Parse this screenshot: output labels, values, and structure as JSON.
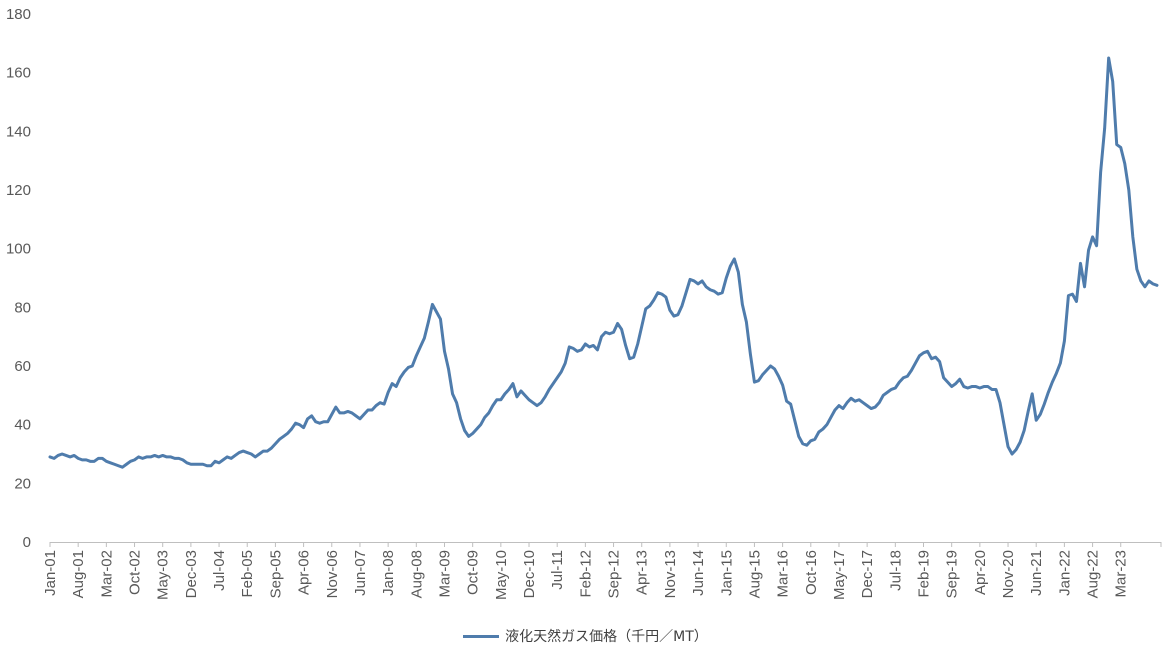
{
  "chart_data": {
    "type": "line",
    "title": "",
    "xlabel": "",
    "ylabel": "",
    "ylim": [
      0,
      180
    ],
    "yticks": [
      0,
      20,
      40,
      60,
      80,
      100,
      120,
      140,
      160,
      180
    ],
    "grid": false,
    "legend_position": "bottom",
    "x_start": "Jan-01",
    "x_tick_labels": [
      "Jan-01",
      "Aug-01",
      "Mar-02",
      "Oct-02",
      "May-03",
      "Dec-03",
      "Jul-04",
      "Feb-05",
      "Sep-05",
      "Apr-06",
      "Nov-06",
      "Jun-07",
      "Jan-08",
      "Aug-08",
      "Mar-09",
      "Oct-09",
      "May-10",
      "Dec-10",
      "Jul-11",
      "Feb-12",
      "Sep-12",
      "Apr-13",
      "Nov-13",
      "Jun-14",
      "Jan-15",
      "Aug-15",
      "Mar-16",
      "Oct-16",
      "May-17",
      "Dec-17",
      "Jul-18",
      "Feb-19",
      "Sep-19",
      "Apr-20",
      "Nov-20",
      "Jun-21",
      "Jan-22",
      "Aug-22",
      "Mar-23"
    ],
    "series": [
      {
        "name": "液化天然ガス価格（千円／MT）",
        "color": "#4f7cac",
        "values": [
          29,
          28.5,
          29.5,
          30,
          29.5,
          29,
          29.5,
          28.5,
          28,
          28,
          27.5,
          27.5,
          28.5,
          28.5,
          27.5,
          27,
          26.5,
          26,
          25.5,
          26.5,
          27.5,
          28,
          29,
          28.5,
          29,
          29,
          29.5,
          29,
          29.5,
          29,
          29,
          28.5,
          28.5,
          28,
          27,
          26.5,
          26.5,
          26.5,
          26.5,
          26,
          26,
          27.5,
          27,
          28,
          29,
          28.5,
          29.5,
          30.5,
          31,
          30.5,
          30,
          29,
          30,
          31,
          31,
          32,
          33.5,
          35,
          36,
          37,
          38.5,
          40.5,
          40,
          39,
          42,
          43,
          41,
          40.5,
          41,
          41,
          43.5,
          46,
          44,
          44,
          44.5,
          44,
          43,
          42,
          43.5,
          45,
          45,
          46.5,
          47.5,
          47,
          51,
          54,
          53,
          56,
          58,
          59.5,
          60,
          63.5,
          66.5,
          69.5,
          75,
          81,
          78.5,
          76,
          65,
          59,
          50.5,
          47.5,
          42,
          38,
          36,
          37,
          38.5,
          40,
          42.5,
          44,
          46.5,
          48.5,
          48.5,
          50.5,
          52,
          54,
          49.5,
          51.5,
          50,
          48.5,
          47.5,
          46.5,
          47.5,
          49.5,
          52,
          54,
          56,
          58,
          61,
          66.5,
          66,
          65,
          65.5,
          67.5,
          66.5,
          67,
          65.5,
          70,
          71.5,
          71,
          71.5,
          74.5,
          72.5,
          67,
          62.5,
          63,
          67.5,
          73.5,
          79.5,
          80.5,
          82.5,
          85,
          84.5,
          83.5,
          79,
          77,
          77.5,
          80.5,
          85,
          89.5,
          89,
          88,
          89,
          87,
          86,
          85.5,
          84.5,
          85,
          90,
          94,
          96.5,
          92,
          81,
          75,
          64,
          54.5,
          55,
          57,
          58.5,
          60,
          59,
          56.5,
          53.5,
          48,
          47,
          41.5,
          36,
          33.5,
          33,
          34.5,
          35,
          37.5,
          38.5,
          40,
          42.5,
          45,
          46.5,
          45.5,
          47.5,
          49,
          48,
          48.5,
          47.5,
          46.5,
          45.5,
          46,
          47.5,
          50,
          51,
          52,
          52.5,
          54.5,
          56,
          56.5,
          58.5,
          61,
          63.5,
          64.5,
          65,
          62.5,
          63,
          61.5,
          56,
          54.5,
          53,
          54,
          55.5,
          53,
          52.5,
          53,
          53,
          52.5,
          53,
          53,
          52,
          52,
          47.5,
          40,
          32.5,
          30,
          31.5,
          34,
          38,
          44.5,
          50.5,
          41.5,
          43.5,
          47,
          51,
          54.5,
          57.5,
          61,
          68.5,
          84,
          84.5,
          82,
          95,
          87,
          99.5,
          104,
          101,
          126,
          141,
          165,
          157,
          135.5,
          134.5,
          129,
          120,
          104,
          93,
          89,
          87,
          89,
          88,
          87.5
        ]
      }
    ]
  }
}
